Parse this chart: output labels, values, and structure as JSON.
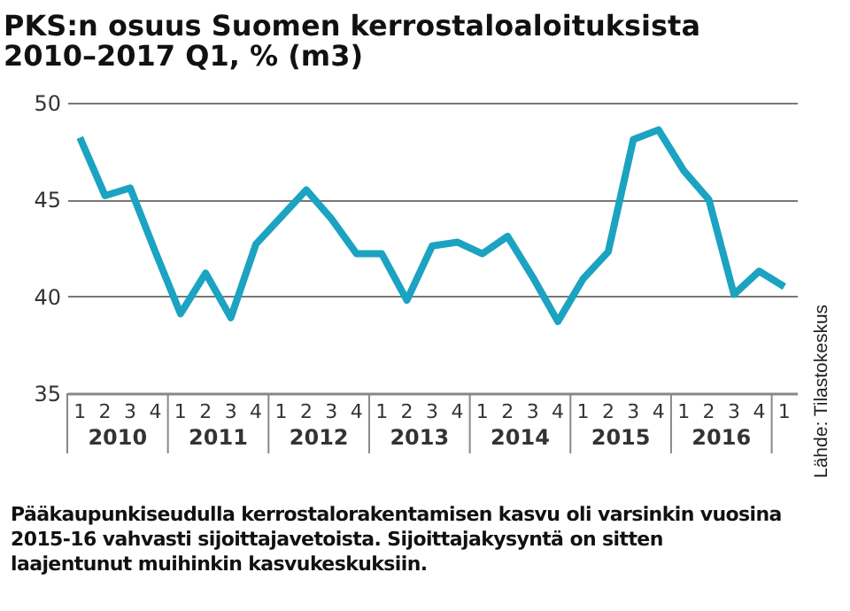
{
  "chart_data": {
    "type": "line",
    "title": "PKS:n osuus Suomen kerrostaloaloituksista\n2010–2017 Q1, % (m3)",
    "categories": [
      "1",
      "2",
      "3",
      "4",
      "1",
      "2",
      "3",
      "4",
      "1",
      "2",
      "3",
      "4",
      "1",
      "2",
      "3",
      "4",
      "1",
      "2",
      "3",
      "4",
      "1",
      "2",
      "3",
      "4",
      "1",
      "2",
      "3",
      "4",
      "1"
    ],
    "series": [
      {
        "color": "#1ba3c1",
        "values": [
          48.2,
          45.2,
          45.6,
          42.3,
          39.1,
          41.2,
          38.9,
          42.7,
          44.1,
          45.5,
          44.0,
          42.2,
          42.2,
          39.8,
          42.6,
          42.8,
          42.2,
          43.1,
          41.0,
          38.7,
          40.9,
          42.3,
          48.1,
          48.6,
          46.5,
          45.0,
          40.1,
          41.3,
          40.5
        ]
      }
    ],
    "ylim": [
      35,
      50
    ],
    "yticks": [
      35,
      40,
      45,
      50
    ],
    "grid": "y",
    "annotations": [
      "Lähde: Tilastokeskus",
      "Pääkaupunkiseudulla kerrostalorakentamisen kasvu oli varsinkin vuosina 2015-16 vahvasti sijoittajavetoista. Sijoittajakysyntä on sitten laajentunut muihinkin kasvukeskuksiin.",
      "2010",
      "2011",
      "2012",
      "2013",
      "2014",
      "2015",
      "2016"
    ]
  }
}
